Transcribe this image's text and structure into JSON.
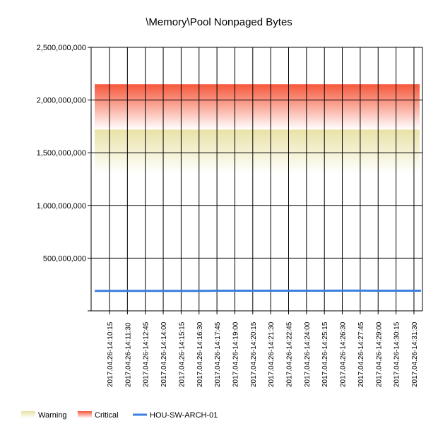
{
  "chart_data": {
    "type": "line",
    "title": "\\Memory\\Pool Nonpaged Bytes",
    "xlabel": "",
    "ylabel": "",
    "ylim": [
      0,
      2500000000
    ],
    "yticks": [
      500000000,
      1000000000,
      1500000000,
      2000000000,
      2500000000
    ],
    "ytick_labels": [
      "500,000,000",
      "1,000,000,000",
      "1,500,000,000",
      "2,000,000,000",
      "2,500,000,000"
    ],
    "grid": true,
    "legend_position": "bottom",
    "categories": [
      "2017.04.26-14:10:15",
      "2017.04.26-14:11:30",
      "2017.04.26-14:12:45",
      "2017.04.26-14:14:00",
      "2017.04.26-14:15:15",
      "2017.04.26-14:16:30",
      "2017.04.26-14:17:45",
      "2017.04.26-14:19:00",
      "2017.04.26-14:20:15",
      "2017.04.26-14:21:30",
      "2017.04.26-14:22:45",
      "2017.04.26-14:24:00",
      "2017.04.26-14:25:15",
      "2017.04.26-14:26:30",
      "2017.04.26-14:27:45",
      "2017.04.26-14:29:00",
      "2017.04.26-14:30:15",
      "2017.04.26-14:31:30"
    ],
    "bands": [
      {
        "name": "Warning",
        "from": 1300000000,
        "to": 1720000000,
        "color": "#e9e2a6"
      },
      {
        "name": "Critical",
        "from": 1720000000,
        "to": 2150000000,
        "color": "#f5573a"
      }
    ],
    "series": [
      {
        "name": "HOU-SW-ARCH-01",
        "color": "#3b7fe0",
        "values": [
          190000000,
          190000000,
          190000000,
          190000000,
          190000000,
          190000000,
          191000000,
          191000000,
          191000000,
          191000000,
          191000000,
          191000000,
          191000000,
          192000000,
          192000000,
          191000000,
          191000000,
          191000000
        ]
      }
    ]
  }
}
